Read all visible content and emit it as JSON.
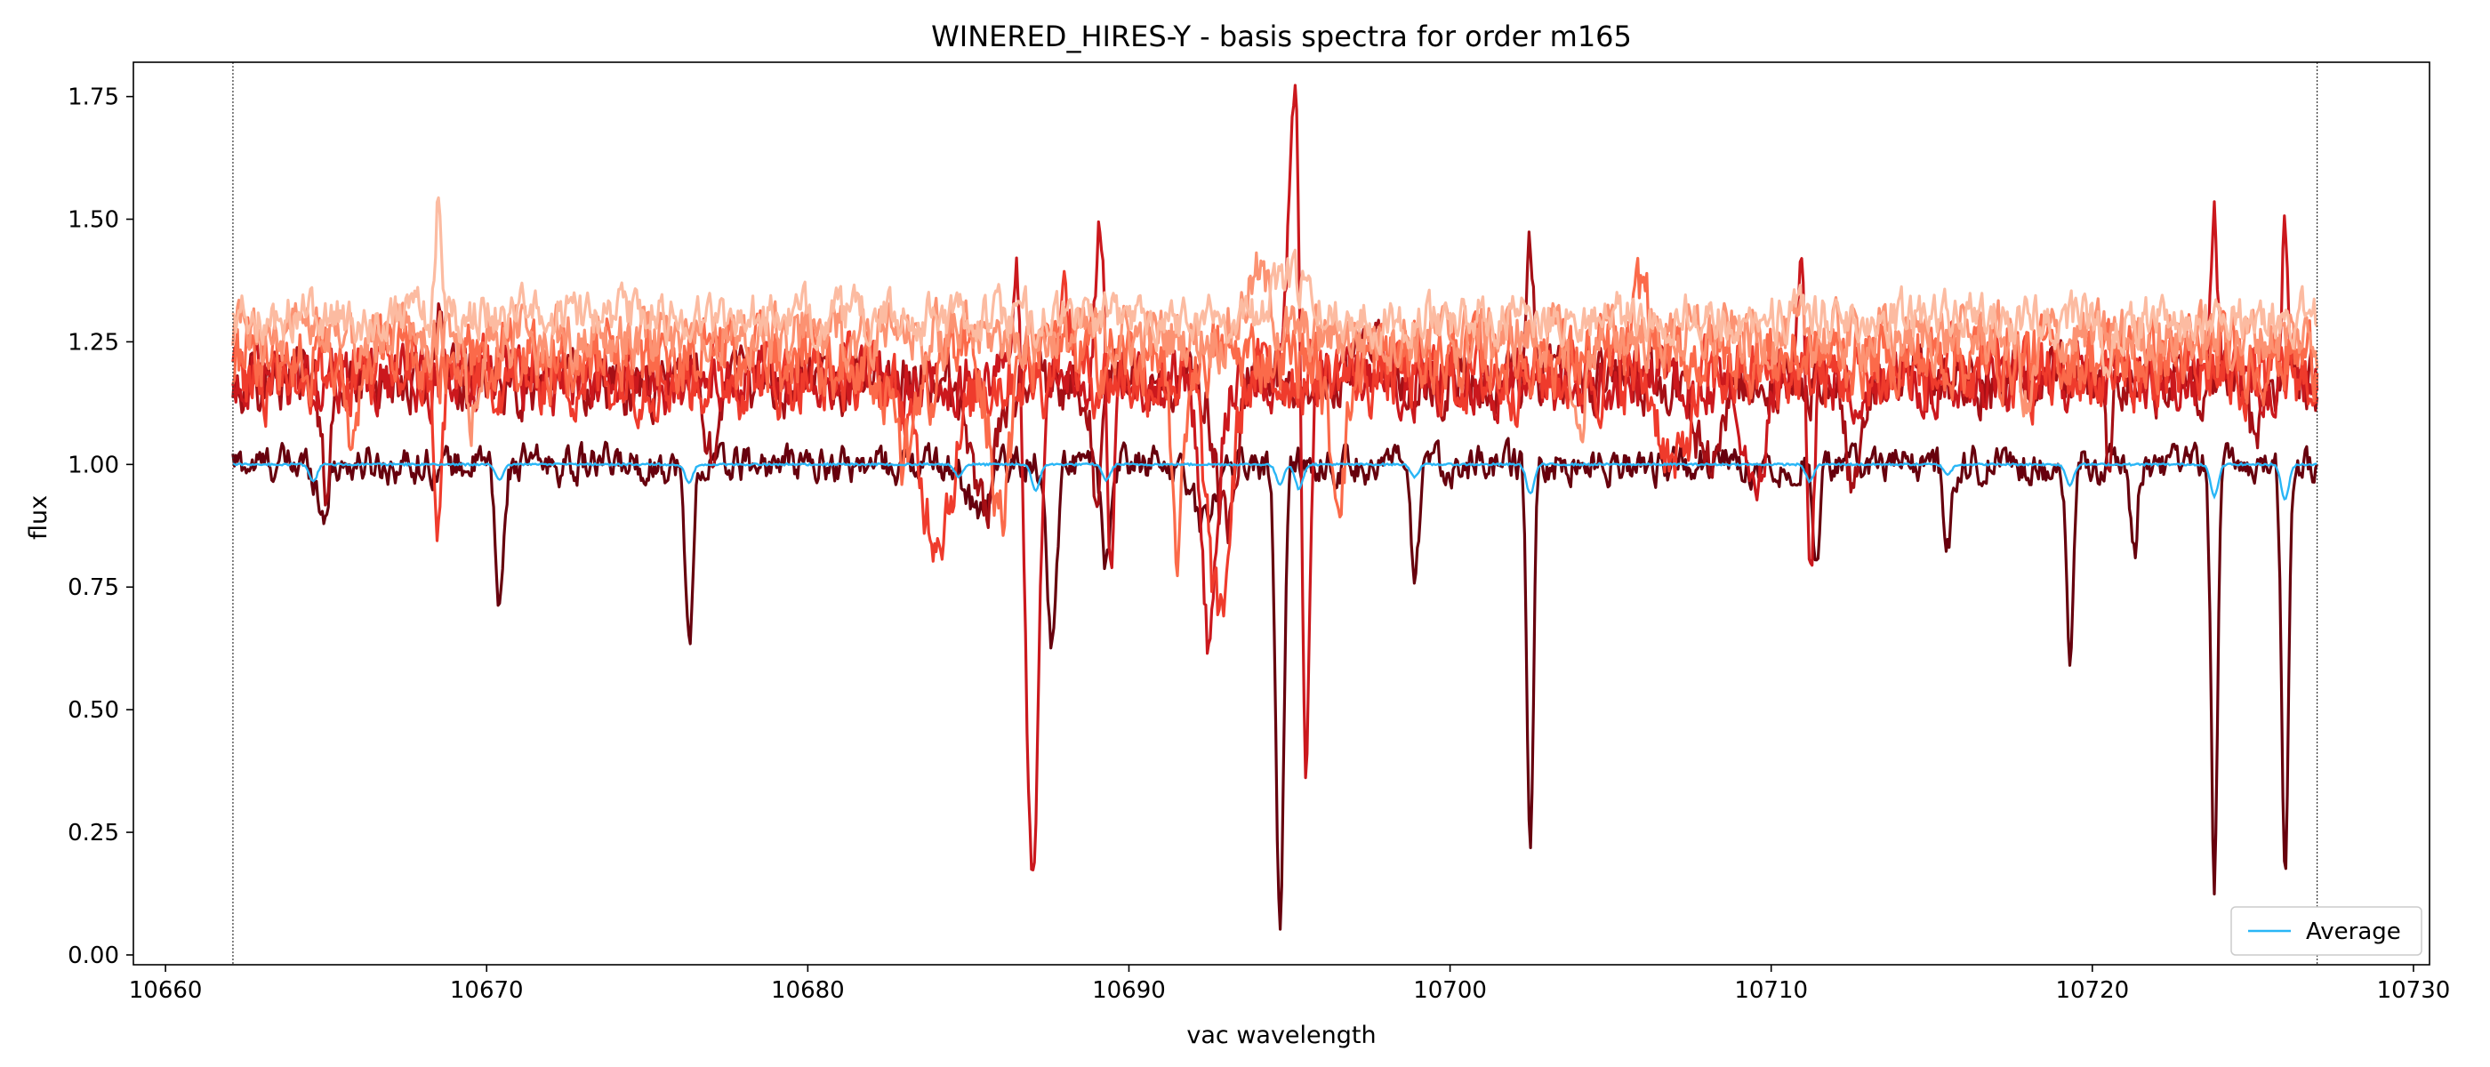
{
  "chart_data": {
    "type": "line",
    "title": "WINERED_HIRES-Y - basis spectra for order m165",
    "xlabel": "vac wavelength",
    "ylabel": "flux",
    "xlim": [
      10659.0,
      10730.5
    ],
    "ylim": [
      -0.02,
      1.82
    ],
    "xticks": [
      10660,
      10670,
      10680,
      10690,
      10700,
      10710,
      10720,
      10730
    ],
    "yticks": [
      0.0,
      0.25,
      0.5,
      0.75,
      1.0,
      1.25,
      1.5,
      1.75
    ],
    "ytick_labels": [
      "0.00",
      "0.25",
      "0.50",
      "0.75",
      "1.00",
      "1.25",
      "1.50",
      "1.75"
    ],
    "vertical_lines": [
      10662.1,
      10727.0
    ],
    "legend": {
      "position": "lower-right",
      "entries": [
        "Average"
      ]
    },
    "x_range": [
      10662.1,
      10727.0
    ],
    "average": {
      "name": "Average",
      "color": "#29b6f6",
      "baseline": 1.0,
      "dips": [
        {
          "x": 10664.6,
          "y": 0.965
        },
        {
          "x": 10670.4,
          "y": 0.97
        },
        {
          "x": 10676.3,
          "y": 0.962
        },
        {
          "x": 10684.7,
          "y": 0.975
        },
        {
          "x": 10687.1,
          "y": 0.945
        },
        {
          "x": 10689.3,
          "y": 0.968
        },
        {
          "x": 10694.7,
          "y": 0.96
        },
        {
          "x": 10695.3,
          "y": 0.95
        },
        {
          "x": 10698.9,
          "y": 0.975
        },
        {
          "x": 10702.5,
          "y": 0.94
        },
        {
          "x": 10711.2,
          "y": 0.965
        },
        {
          "x": 10715.5,
          "y": 0.98
        },
        {
          "x": 10719.3,
          "y": 0.958
        },
        {
          "x": 10723.8,
          "y": 0.935
        },
        {
          "x": 10726.0,
          "y": 0.928
        }
      ]
    },
    "basis_series": [
      {
        "color": "#67000d",
        "baseline": 1.0,
        "noise": 0.03,
        "lines": [
          {
            "x": 10664.9,
            "depth": 0.1,
            "width": 0.15
          },
          {
            "x": 10670.4,
            "depth": 0.3,
            "width": 0.12
          },
          {
            "x": 10676.3,
            "depth": 0.37,
            "width": 0.12
          },
          {
            "x": 10685.3,
            "depth": 0.1,
            "width": 0.3
          },
          {
            "x": 10687.6,
            "depth": 0.36,
            "width": 0.15
          },
          {
            "x": 10689.3,
            "depth": 0.2,
            "width": 0.15
          },
          {
            "x": 10692.3,
            "depth": 0.12,
            "width": 0.3
          },
          {
            "x": 10694.7,
            "depth": 0.94,
            "width": 0.12
          },
          {
            "x": 10698.9,
            "depth": 0.27,
            "width": 0.12
          },
          {
            "x": 10702.5,
            "depth": 0.79,
            "width": 0.1
          },
          {
            "x": 10711.4,
            "depth": 0.17,
            "width": 0.12
          },
          {
            "x": 10715.5,
            "depth": 0.16,
            "width": 0.12
          },
          {
            "x": 10719.3,
            "depth": 0.44,
            "width": 0.1
          },
          {
            "x": 10721.3,
            "depth": 0.2,
            "width": 0.1
          },
          {
            "x": 10723.8,
            "depth": 0.84,
            "width": 0.1
          },
          {
            "x": 10726.0,
            "depth": 0.86,
            "width": 0.1
          }
        ]
      },
      {
        "color": "#a50f15",
        "baseline": 1.17,
        "noise": 0.05,
        "lines": [
          {
            "x": 10665.0,
            "depth": 0.2,
            "width": 0.15
          },
          {
            "x": 10668.5,
            "depth": -0.12,
            "width": 0.1
          },
          {
            "x": 10677.0,
            "depth": 0.15,
            "width": 0.15
          },
          {
            "x": 10685.5,
            "depth": 0.25,
            "width": 0.4
          },
          {
            "x": 10689.0,
            "depth": 0.25,
            "width": 0.15
          },
          {
            "x": 10693.0,
            "depth": 0.3,
            "width": 0.3
          },
          {
            "x": 10697.5,
            "depth": -0.12,
            "width": 0.3
          },
          {
            "x": 10702.5,
            "depth": -0.25,
            "width": 0.1
          },
          {
            "x": 10708.0,
            "depth": 0.2,
            "width": 0.3
          },
          {
            "x": 10712.5,
            "depth": 0.2,
            "width": 0.2
          },
          {
            "x": 10720.5,
            "depth": 0.2,
            "width": 0.1
          },
          {
            "x": 10725.0,
            "depth": 0.1,
            "width": 0.2
          }
        ]
      },
      {
        "color": "#cb181d",
        "baseline": 1.17,
        "noise": 0.05,
        "lines": [
          {
            "x": 10687.0,
            "depth": 1.05,
            "width": 0.18
          },
          {
            "x": 10686.5,
            "depth": -0.28,
            "width": 0.1
          },
          {
            "x": 10689.2,
            "depth": -0.4,
            "width": 0.2
          },
          {
            "x": 10689.4,
            "depth": 0.6,
            "width": 0.12
          },
          {
            "x": 10692.5,
            "depth": 0.55,
            "width": 0.25
          },
          {
            "x": 10695.2,
            "depth": -0.57,
            "width": 0.22
          },
          {
            "x": 10695.5,
            "depth": 1.02,
            "width": 0.12
          },
          {
            "x": 10709.5,
            "depth": 0.25,
            "width": 0.3
          },
          {
            "x": 10711.2,
            "depth": 0.55,
            "width": 0.12
          },
          {
            "x": 10711.0,
            "depth": -0.33,
            "width": 0.15
          },
          {
            "x": 10723.8,
            "depth": -0.3,
            "width": 0.1
          },
          {
            "x": 10726.0,
            "depth": -0.33,
            "width": 0.1
          }
        ]
      },
      {
        "color": "#ef3b2c",
        "baseline": 1.18,
        "noise": 0.06,
        "lines": [
          {
            "x": 10668.5,
            "depth": 0.3,
            "width": 0.12
          },
          {
            "x": 10684.0,
            "depth": 0.3,
            "width": 0.6
          },
          {
            "x": 10692.8,
            "depth": 0.5,
            "width": 0.35
          },
          {
            "x": 10688.0,
            "depth": -0.15,
            "width": 0.2
          },
          {
            "x": 10707.0,
            "depth": 0.2,
            "width": 0.4
          }
        ]
      },
      {
        "color": "#fb6a4a",
        "baseline": 1.22,
        "noise": 0.06,
        "lines": [
          {
            "x": 10665.8,
            "depth": 0.2,
            "width": 0.2
          },
          {
            "x": 10683.0,
            "depth": 0.2,
            "width": 0.5
          },
          {
            "x": 10686.0,
            "depth": 0.3,
            "width": 0.3
          },
          {
            "x": 10691.5,
            "depth": 0.4,
            "width": 0.2
          },
          {
            "x": 10696.5,
            "depth": 0.25,
            "width": 0.3
          },
          {
            "x": 10706.0,
            "depth": -0.15,
            "width": 0.2
          }
        ]
      },
      {
        "color": "#fc9272",
        "baseline": 1.26,
        "noise": 0.05,
        "lines": [
          {
            "x": 10669.5,
            "depth": 0.15,
            "width": 0.2
          },
          {
            "x": 10694.0,
            "depth": -0.12,
            "width": 0.4
          },
          {
            "x": 10704.0,
            "depth": 0.2,
            "width": 0.2
          },
          {
            "x": 10718.0,
            "depth": 0.15,
            "width": 0.2
          }
        ]
      },
      {
        "color": "#fcbba1",
        "baseline": 1.3,
        "noise": 0.04,
        "lines": [
          {
            "x": 10668.5,
            "depth": -0.25,
            "width": 0.1
          },
          {
            "x": 10695.0,
            "depth": -0.08,
            "width": 0.5
          },
          {
            "x": 10720.5,
            "depth": 0.1,
            "width": 0.2
          }
        ]
      }
    ]
  }
}
